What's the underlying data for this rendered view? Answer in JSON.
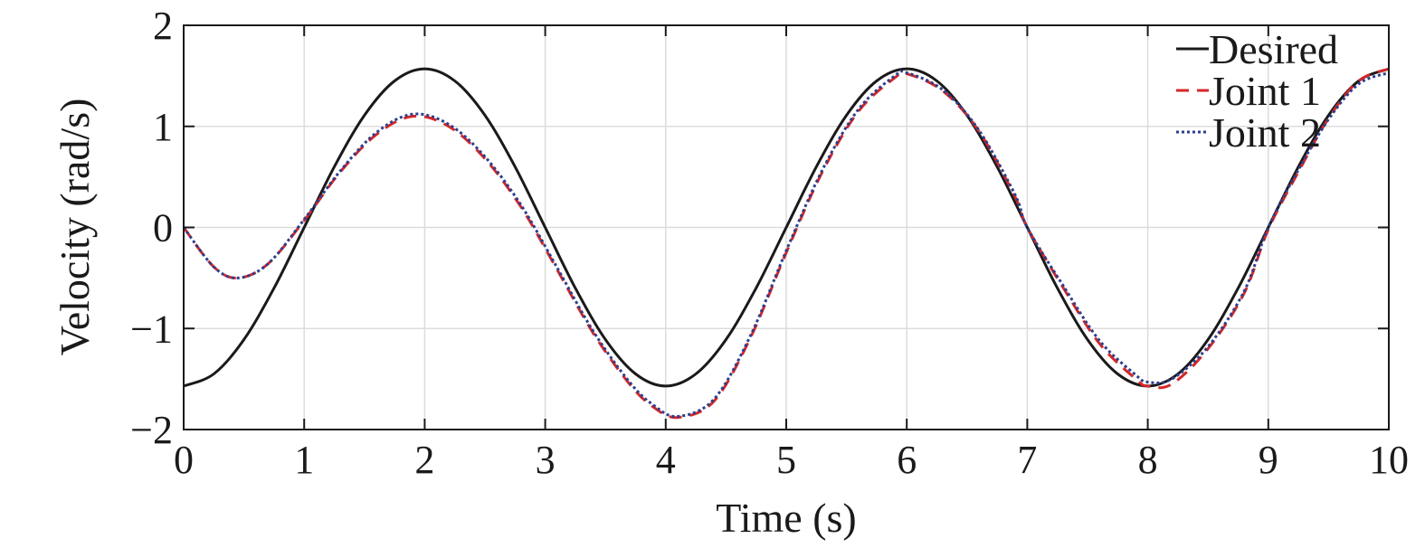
{
  "chart_data": {
    "type": "line",
    "title": "",
    "xlabel": "Time (s)",
    "ylabel": "Velocity (rad/s)",
    "xlim": [
      0,
      10
    ],
    "ylim": [
      -2,
      2
    ],
    "xticks": [
      0,
      1,
      2,
      3,
      4,
      5,
      6,
      7,
      8,
      9,
      10
    ],
    "yticks": [
      -2,
      -1,
      0,
      1,
      2
    ],
    "xtick_labels": [
      "0",
      "1",
      "2",
      "3",
      "4",
      "5",
      "6",
      "7",
      "8",
      "9",
      "10"
    ],
    "ytick_labels": [
      "−2",
      "−1",
      "0",
      "1",
      "2"
    ],
    "grid": true,
    "legend_position": "top-right",
    "series": [
      {
        "name": "Desired",
        "style": "solid",
        "color": "#1a1a1a",
        "x": [
          0,
          0.25,
          0.5,
          0.75,
          1,
          1.25,
          1.5,
          1.75,
          2,
          2.25,
          2.5,
          2.75,
          3,
          3.25,
          3.5,
          3.75,
          4,
          4.25,
          4.5,
          4.75,
          5,
          5.25,
          5.5,
          5.75,
          6,
          6.25,
          6.5,
          6.75,
          7,
          7.25,
          7.5,
          7.75,
          8,
          8.25,
          8.5,
          8.75,
          9,
          9.25,
          9.5,
          9.75,
          10
        ],
        "y": [
          -1.57,
          -1.45,
          -1.11,
          -0.6,
          0,
          0.6,
          1.11,
          1.45,
          1.57,
          1.45,
          1.11,
          0.6,
          0,
          -0.6,
          -1.11,
          -1.45,
          -1.57,
          -1.45,
          -1.11,
          -0.6,
          0,
          0.6,
          1.11,
          1.45,
          1.57,
          1.45,
          1.11,
          0.6,
          0,
          -0.6,
          -1.11,
          -1.45,
          -1.57,
          -1.45,
          -1.11,
          -0.6,
          0,
          0.6,
          1.11,
          1.45,
          1.57
        ]
      },
      {
        "name": "Joint 1",
        "style": "dashed",
        "color": "#d62728",
        "x": [
          0,
          0.25,
          0.45,
          0.7,
          1,
          1.3,
          1.6,
          1.9,
          2.2,
          2.5,
          2.8,
          3.1,
          3.4,
          3.7,
          3.9,
          4.1,
          4.4,
          4.7,
          5,
          5.3,
          5.6,
          5.9,
          6,
          6.3,
          6.6,
          6.9,
          7,
          7.3,
          7.6,
          7.9,
          8,
          8.2,
          8.5,
          8.8,
          9,
          9.25,
          9.5,
          9.75,
          10
        ],
        "y": [
          0,
          -0.39,
          -0.5,
          -0.36,
          0.07,
          0.55,
          0.92,
          1.1,
          1.0,
          0.68,
          0.2,
          -0.42,
          -1.05,
          -1.55,
          -1.78,
          -1.88,
          -1.72,
          -1.1,
          -0.25,
          0.55,
          1.15,
          1.48,
          1.52,
          1.35,
          0.95,
          0.3,
          0,
          -0.6,
          -1.15,
          -1.5,
          -1.57,
          -1.55,
          -1.2,
          -0.65,
          -0.02,
          0.55,
          1.08,
          1.45,
          1.57
        ]
      },
      {
        "name": "Joint 2",
        "style": "dotted",
        "color": "#2c3e8c",
        "x": [
          0,
          0.25,
          0.45,
          0.7,
          1,
          1.3,
          1.6,
          1.9,
          2.2,
          2.5,
          2.8,
          3.1,
          3.4,
          3.7,
          3.9,
          4.1,
          4.4,
          4.7,
          5,
          5.3,
          5.6,
          5.9,
          6,
          6.3,
          6.6,
          6.9,
          7,
          7.3,
          7.6,
          7.9,
          8,
          8.2,
          8.5,
          8.8,
          9,
          9.25,
          9.5,
          9.75,
          10
        ],
        "y": [
          0,
          -0.39,
          -0.5,
          -0.36,
          0.08,
          0.56,
          0.94,
          1.12,
          1.02,
          0.7,
          0.22,
          -0.4,
          -1.03,
          -1.53,
          -1.76,
          -1.87,
          -1.7,
          -1.08,
          -0.23,
          0.57,
          1.17,
          1.5,
          1.53,
          1.36,
          0.96,
          0.32,
          0,
          -0.58,
          -1.12,
          -1.46,
          -1.53,
          -1.5,
          -1.18,
          -0.63,
          0,
          0.57,
          1.07,
          1.42,
          1.53
        ]
      }
    ]
  }
}
